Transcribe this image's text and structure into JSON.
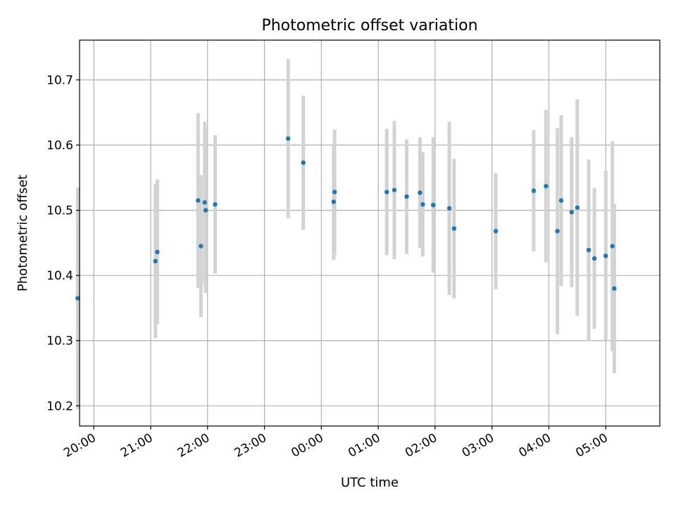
{
  "chart_data": {
    "type": "scatter",
    "title": "Photometric offset variation",
    "xlabel": "UTC time",
    "ylabel": "Photometric offset",
    "xlim": [
      "19:45",
      "05:57"
    ],
    "ylim": [
      10.169,
      10.761
    ],
    "grid": true,
    "x_ticks": [
      "20:00",
      "21:00",
      "22:00",
      "23:00",
      "00:00",
      "01:00",
      "02:00",
      "03:00",
      "04:00",
      "05:00"
    ],
    "y_ticks": [
      10.2,
      10.3,
      10.4,
      10.5,
      10.6,
      10.7
    ],
    "point_color": "#1f77b4",
    "errorbar_color": "#d3d3d3",
    "series": [
      {
        "points": [
          {
            "t": "19:43",
            "y": 10.365,
            "err": 0.17
          },
          {
            "t": "21:05",
            "y": 10.422,
            "err": 0.118
          },
          {
            "t": "21:07",
            "y": 10.436,
            "err": 0.111
          },
          {
            "t": "21:50",
            "y": 10.515,
            "err": 0.134
          },
          {
            "t": "21:53",
            "y": 10.445,
            "err": 0.109
          },
          {
            "t": "21:57",
            "y": 10.512,
            "err": 0.124
          },
          {
            "t": "21:58",
            "y": 10.5,
            "err": 0.127
          },
          {
            "t": "22:08",
            "y": 10.509,
            "err": 0.106
          },
          {
            "t": "23:25",
            "y": 10.61,
            "err": 0.122
          },
          {
            "t": "23:41",
            "y": 10.573,
            "err": 0.103
          },
          {
            "t": "00:13",
            "y": 10.513,
            "err": 0.089
          },
          {
            "t": "00:14",
            "y": 10.528,
            "err": 0.096
          },
          {
            "t": "01:09",
            "y": 10.528,
            "err": 0.097
          },
          {
            "t": "01:17",
            "y": 10.531,
            "err": 0.106
          },
          {
            "t": "01:30",
            "y": 10.521,
            "err": 0.088
          },
          {
            "t": "01:44",
            "y": 10.527,
            "err": 0.085
          },
          {
            "t": "01:47",
            "y": 10.509,
            "err": 0.08
          },
          {
            "t": "01:58",
            "y": 10.508,
            "err": 0.104
          },
          {
            "t": "02:15",
            "y": 10.503,
            "err": 0.133
          },
          {
            "t": "02:20",
            "y": 10.472,
            "err": 0.107
          },
          {
            "t": "03:04",
            "y": 10.468,
            "err": 0.089
          },
          {
            "t": "03:44",
            "y": 10.53,
            "err": 0.093
          },
          {
            "t": "03:57",
            "y": 10.537,
            "err": 0.117
          },
          {
            "t": "04:09",
            "y": 10.468,
            "err": 0.158
          },
          {
            "t": "04:13",
            "y": 10.515,
            "err": 0.131
          },
          {
            "t": "04:24",
            "y": 10.497,
            "err": 0.115
          },
          {
            "t": "04:30",
            "y": 10.504,
            "err": 0.166
          },
          {
            "t": "04:42",
            "y": 10.439,
            "err": 0.139
          },
          {
            "t": "04:48",
            "y": 10.426,
            "err": 0.108
          },
          {
            "t": "05:00",
            "y": 10.43,
            "err": 0.13
          },
          {
            "t": "05:07",
            "y": 10.445,
            "err": 0.161
          },
          {
            "t": "05:09",
            "y": 10.38,
            "err": 0.13
          }
        ]
      }
    ]
  }
}
